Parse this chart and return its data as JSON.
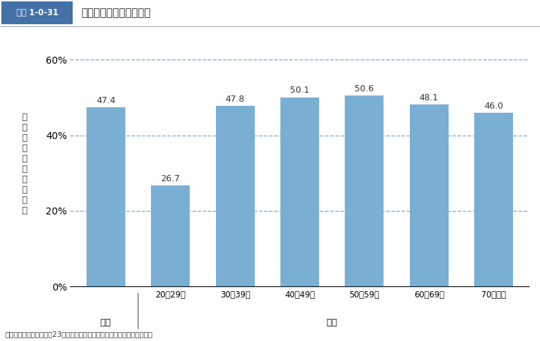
{
  "title_box_label": "図表 1-0-31",
  "title_text": "非常用食糧の用意の有無",
  "categories": [
    "全体",
    "20～29歳",
    "30～39歳",
    "40～49歳",
    "50～59歳",
    "60～69歳",
    "70歳以上"
  ],
  "values": [
    47.4,
    26.7,
    47.8,
    50.1,
    50.6,
    48.1,
    46.0
  ],
  "bar_color": "#7aafd4",
  "ylabel_chars": [
    "用",
    "意",
    "し",
    "て",
    "い",
    "る",
    "者",
    "の",
    "割",
    "合"
  ],
  "yticks": [
    0,
    20,
    40,
    60
  ],
  "ytick_labels": [
    "0%",
    "20%",
    "40%",
    "60%"
  ],
  "ylim": [
    0,
    65
  ],
  "grid_color": "#5b9bd5",
  "grid_linestyle": "--",
  "grid_alpha": 0.8,
  "source_text": "出典：厚生労働省「平成23年度国民健康・栄養調査」をもとに内閣府作成",
  "title_box_color": "#4472a8",
  "title_box_text_color": "#ffffff",
  "background_color": "#ffffff",
  "bar_width": 0.6,
  "group_label_全体": "全体",
  "group_label_内訳": "内訳"
}
